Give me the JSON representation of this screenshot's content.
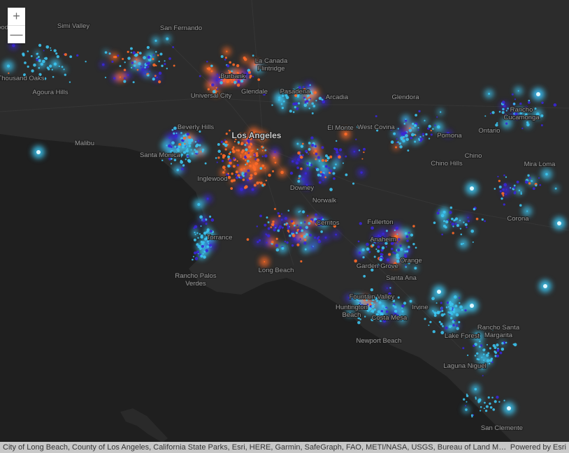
{
  "controls": {
    "zoom_in": "+",
    "zoom_out": "—"
  },
  "places": [
    {
      "lines": [
        "ood"
      ]
    },
    {
      "lines": [
        "Simi Valley"
      ]
    },
    {
      "lines": [
        "San Fernando"
      ]
    },
    {
      "lines": [
        "La Canada",
        "Flintridge"
      ]
    },
    {
      "lines": [
        "Burbank"
      ]
    },
    {
      "lines": [
        "Thousand Oaks"
      ]
    },
    {
      "lines": [
        "Agoura Hills"
      ]
    },
    {
      "lines": [
        "Glendale"
      ]
    },
    {
      "lines": [
        "Pasadena"
      ]
    },
    {
      "lines": [
        "Universal City"
      ]
    },
    {
      "lines": [
        "Arcadia"
      ]
    },
    {
      "lines": [
        "Glendora"
      ]
    },
    {
      "lines": [
        "Rancho",
        "Cucamonga"
      ]
    },
    {
      "lines": [
        "Beverly Hills"
      ]
    },
    {
      "lines": [
        "El Monte"
      ]
    },
    {
      "lines": [
        "West Covina"
      ]
    },
    {
      "lines": [
        "Ontario"
      ]
    },
    {
      "lines": [
        "Los Angeles"
      ]
    },
    {
      "lines": [
        "Pomona"
      ]
    },
    {
      "lines": [
        "Malibu"
      ]
    },
    {
      "lines": [
        "Santa Monica"
      ]
    },
    {
      "lines": [
        "Chino Hills"
      ]
    },
    {
      "lines": [
        "Chino"
      ]
    },
    {
      "lines": [
        "Mira Loma"
      ]
    },
    {
      "lines": [
        "Inglewood"
      ]
    },
    {
      "lines": [
        "Downey"
      ]
    },
    {
      "lines": [
        "Norwalk"
      ]
    },
    {
      "lines": [
        "Fullerton"
      ]
    },
    {
      "lines": [
        "Corona"
      ]
    },
    {
      "lines": [
        "Torrance"
      ]
    },
    {
      "lines": [
        "Cerritos"
      ]
    },
    {
      "lines": [
        "Anaheim"
      ]
    },
    {
      "lines": [
        "Orange"
      ]
    },
    {
      "lines": [
        "Garden Grove"
      ]
    },
    {
      "lines": [
        "Long Beach"
      ]
    },
    {
      "lines": [
        "Rancho Palos",
        "Verdes"
      ]
    },
    {
      "lines": [
        "Santa Ana"
      ]
    },
    {
      "lines": [
        "Fountain Valley"
      ]
    },
    {
      "lines": [
        "Irvine"
      ]
    },
    {
      "lines": [
        "Huntington",
        "Beach"
      ]
    },
    {
      "lines": [
        "Costa Mesa"
      ]
    },
    {
      "lines": [
        "Lake Forest"
      ]
    },
    {
      "lines": [
        "Rancho Santa",
        "Margarita"
      ]
    },
    {
      "lines": [
        "Newport Beach"
      ]
    },
    {
      "lines": [
        "Laguna Niguel"
      ]
    },
    {
      "lines": [
        "San Clemente"
      ]
    }
  ],
  "attribution": "City of Long Beach, County of Los Angeles, California State Parks, Esri, HERE, Garmin, SafeGraph, FAO, METI/NASA, USGS, Bureau of Land Management, EPA, NPS | U.S. Census Bureau",
  "powered_by": "Powered by Esri"
}
